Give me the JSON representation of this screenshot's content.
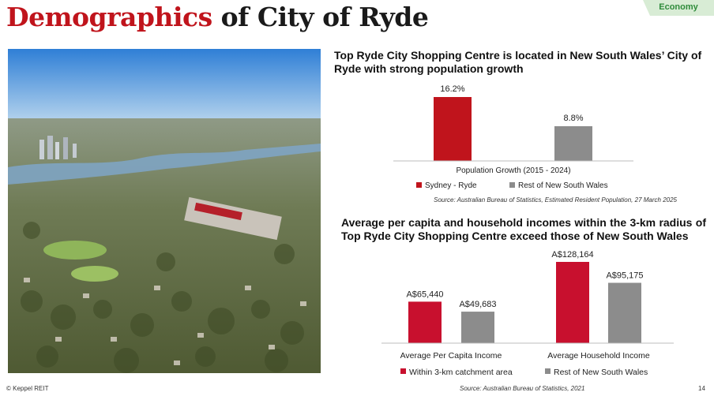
{
  "header": {
    "title_accent": "Demographics",
    "title_rest": " of City of Ryde",
    "section_tag": "Economy"
  },
  "photo": {
    "icon": "aerial-photo-ryde"
  },
  "colors": {
    "accent": "#c0141c",
    "grey": "#8c8c8c",
    "tag_bg": "#d8ecd5",
    "tag_text": "#2e8b3a"
  },
  "chart_data": [
    {
      "type": "bar",
      "heading": "Top Ryde City Shopping Centre is located in New South Wales’ City of Ryde with strong population growth",
      "categories": [
        "Population Growth (2015 - 2024)"
      ],
      "series": [
        {
          "name": "Sydney - Ryde",
          "values": [
            16.2
          ],
          "labels": [
            "16.2%"
          ],
          "color": "#c0141c"
        },
        {
          "name": "Rest of New South Wales",
          "values": [
            8.8
          ],
          "labels": [
            "8.8%"
          ],
          "color": "#8c8c8c"
        }
      ],
      "ylim": [
        0,
        17
      ],
      "grid": false,
      "legend": "bottom",
      "source": "Source: Australian Bureau of Statistics, Estimated Resident Population, 27 March 2025"
    },
    {
      "type": "bar",
      "heading": "Average per capita and household incomes within the 3-km radius of Top Ryde City Shopping Centre exceed those of New South Wales",
      "categories": [
        "Average Per Capita Income",
        "Average Household Income"
      ],
      "series": [
        {
          "name": "Within 3-km catchment area",
          "values": [
            65440,
            128164
          ],
          "labels": [
            "A$65,440",
            "A$128,164"
          ],
          "color": "#c8102e"
        },
        {
          "name": "Rest of New South Wales",
          "values": [
            49683,
            95175
          ],
          "labels": [
            "A$49,683",
            "A$95,175"
          ],
          "color": "#8c8c8c"
        }
      ],
      "ylim": [
        0,
        132000
      ],
      "grid": false,
      "legend": "bottom"
    }
  ],
  "footer": {
    "copyright": "© Keppel REIT",
    "source": "Source: Australian Bureau of Statistics, 2021",
    "page_number": "14"
  }
}
